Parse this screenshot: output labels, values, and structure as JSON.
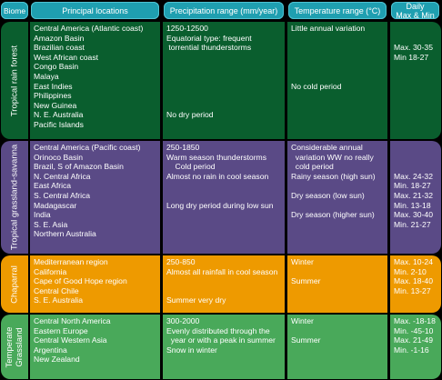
{
  "headers": {
    "biome": "Biome",
    "locations": "Principal locations",
    "precip": "Precipitation range  (mm/year)",
    "temp": "Temperature range (°C)",
    "daily_line1": "Daily",
    "daily_line2": "Max & Min"
  },
  "colors": {
    "header": "#1f9fb0",
    "tropical_rain_forest": "#0a5e2e",
    "tropical_grassland_savanna": "#5a4a86",
    "chaparral": "#ee9a00",
    "temperate_grassland": "#49a95a"
  },
  "rows": [
    {
      "biome": "Tropical rain forest",
      "locations": [
        "Central America (Atlantic coast)",
        "Amazon Basin",
        "Brazilian coast",
        "West African coast",
        "Congo Basin",
        "Malaya",
        "East Indies",
        "Philippines",
        "New Guinea",
        "N. E. Australia",
        "Pacific Islands"
      ],
      "precip": [
        "1250-12500",
        "Equatorial type: frequent",
        " torrential thunderstorms",
        "",
        "",
        "",
        "",
        "",
        "",
        "No dry period",
        ""
      ],
      "temp": [
        "Little annual variation",
        "",
        "",
        "",
        "",
        "",
        "No cold period",
        "",
        "",
        "",
        ""
      ],
      "daily": [
        "",
        "",
        "Max. 30-35",
        "Min 18-27",
        "",
        "",
        "",
        "",
        "",
        "",
        ""
      ]
    },
    {
      "biome": "Tropical grassland-savanna",
      "locations": [
        "Central America (Pacific coast)",
        "Orinoco Basin",
        "Brazil, S of Amazon Basin",
        "N. Central Africa",
        "East Africa",
        "S. Central Africa",
        "Madagascar",
        "India",
        "S. E. Asia",
        "Northern Australia"
      ],
      "precip": [
        "250-1850",
        "Warm season thunderstorms",
        "    Cold period",
        "Almost no rain in cool season",
        "",
        "",
        "Long dry period during low sun",
        "",
        "",
        ""
      ],
      "temp": [
        "Considerable annual",
        "  variation WW no really",
        "  cold period",
        "Rainy season (high sun)",
        "",
        "Dry season (low sun)",
        "",
        "Dry season (higher sun)",
        "",
        ""
      ],
      "daily": [
        "",
        "",
        "",
        "Max. 24-32",
        "Min. 18-27",
        "Max. 21-32",
        "Min. 13-18",
        "Max. 30-40",
        "Min. 21-27",
        ""
      ]
    },
    {
      "biome": "Chaparral",
      "locations": [
        "Mediterranean region",
        "California",
        "Cape of Good Hope region",
        "Central Chile",
        "S. E. Australia"
      ],
      "precip": [
        "250-850",
        "Almost all rainfall in cool season",
        "",
        "",
        "Summer very dry"
      ],
      "temp": [
        "Winter",
        "",
        "Summer",
        "",
        ""
      ],
      "daily": [
        "Max. 10-24",
        "Min. 2-10",
        "Max. 18-40",
        "Min. 13-27",
        ""
      ]
    },
    {
      "biome_line1": "Temperate",
      "biome_line2": "Grassland",
      "locations": [
        "Central North America",
        "Eastern Europe",
        "Central Western Asia",
        "Argentina",
        "New Zealand"
      ],
      "precip": [
        "300-2000",
        "Evenly distributed through the",
        "  year or with a peak in summer",
        "Snow in winter",
        ""
      ],
      "temp": [
        "Winter",
        "",
        "Summer",
        "",
        ""
      ],
      "daily": [
        "Max. -18-18",
        "Min. -45-10",
        "Max. 21-49",
        "Min. -1-16",
        ""
      ]
    }
  ]
}
